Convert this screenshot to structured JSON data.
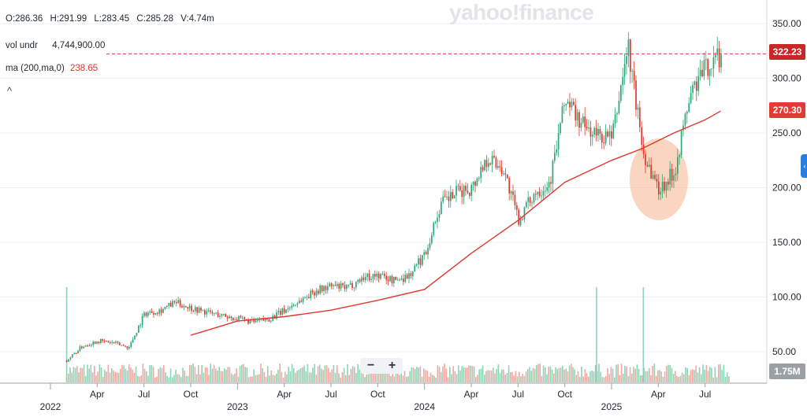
{
  "header": {
    "ohlc": {
      "open": "O:286.36",
      "high": "H:291.99",
      "low": "L:283.45",
      "close": "C:285.28",
      "volume": "V:4.74m"
    },
    "vol_label": "vol undr",
    "vol_value": "4,744,900.00",
    "ma_label": "ma (200,ma,0)",
    "ma_value": "238.65",
    "collapse_glyph": "^"
  },
  "watermark": "yahoo!finance",
  "zoom": {
    "minus": "−",
    "plus": "+"
  },
  "price_tags": {
    "last": "322.23",
    "ma": "270.30",
    "volume": "1.75M"
  },
  "colors": {
    "up": "#2aa876",
    "down": "#e0372f",
    "ma": "#e0372f",
    "last_tag": "#c62828",
    "ma_tag": "#e53935",
    "highlight": "#f6b38a"
  },
  "chart_data": {
    "type": "candlestick",
    "y_axis": {
      "ticks": [
        50,
        100,
        150,
        200,
        250,
        300,
        350
      ],
      "labels": [
        "50.00",
        "100.00",
        "150.00",
        "200.00",
        "250.00",
        "300.00",
        "350.00"
      ],
      "range": [
        32,
        368
      ]
    },
    "x_axis": {
      "months": [
        "Apr",
        "Jul",
        "Oct",
        "Apr",
        "Jul",
        "Oct",
        "Apr",
        "Jul",
        "Oct",
        "Apr",
        "Jul"
      ],
      "years": [
        "2022",
        "2023",
        "2024",
        "2025"
      ],
      "range": [
        "2022-01",
        "2025-09"
      ]
    },
    "series": [
      {
        "kind": "price",
        "x": [
          "2022-02",
          "2022-03",
          "2022-04",
          "2022-05",
          "2022-06",
          "2022-07",
          "2022-08",
          "2022-09",
          "2022-10",
          "2022-11",
          "2022-12",
          "2023-01",
          "2023-02",
          "2023-03",
          "2023-04",
          "2023-05",
          "2023-06",
          "2023-07",
          "2023-08",
          "2023-09",
          "2023-10",
          "2023-11",
          "2023-12",
          "2024-01",
          "2024-02",
          "2024-03",
          "2024-04",
          "2024-05",
          "2024-06",
          "2024-07",
          "2024-08",
          "2024-09",
          "2024-10",
          "2024-11",
          "2024-12",
          "2025-01",
          "2025-02",
          "2025-03",
          "2025-04",
          "2025-05",
          "2025-06",
          "2025-07",
          "2025-08"
        ],
        "values": [
          42,
          55,
          60,
          58,
          54,
          85,
          88,
          95,
          90,
          86,
          83,
          80,
          77,
          80,
          88,
          97,
          106,
          110,
          108,
          118,
          120,
          115,
          120,
          140,
          185,
          195,
          200,
          228,
          218,
          170,
          195,
          205,
          282,
          258,
          248,
          245,
          330,
          232,
          198,
          215,
          285,
          310,
          322
        ]
      },
      {
        "kind": "ma",
        "name": "ma (200,ma,0)",
        "x": [
          "2022-10",
          "2023-01",
          "2023-04",
          "2023-07",
          "2023-10",
          "2024-01",
          "2024-04",
          "2024-07",
          "2024-10",
          "2025-01",
          "2025-03",
          "2025-05",
          "2025-07",
          "2025-08"
        ],
        "values": [
          65,
          78,
          82,
          88,
          97,
          107,
          140,
          170,
          205,
          225,
          236,
          250,
          262,
          270
        ]
      }
    ],
    "volume": {
      "max_label": "1.75M",
      "spikes": [
        "2022-02",
        "2024-12",
        "2025-03"
      ]
    },
    "annotations": [
      "highlight-ellipse-2025-04"
    ]
  }
}
